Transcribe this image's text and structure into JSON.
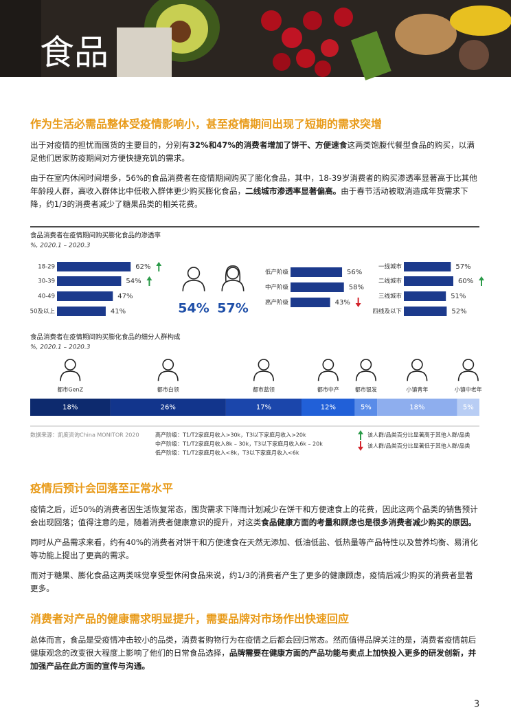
{
  "header": {
    "title": "食品"
  },
  "sections": [
    {
      "heading": "作为生活必需品整体受疫情影响小，甚至疫情期间出现了短期的需求突增",
      "paragraphs": [
        [
          {
            "text": "出于对疫情的担忧而囤货的主要目的，分别有"
          },
          {
            "text": "32%和47%的消费者增加了饼干、方便速食",
            "bold": true
          },
          {
            "text": "这两类饱腹代餐型食品的购买，以满足他们居家防疫期间对方便快捷充饥的需求。"
          }
        ],
        [
          {
            "text": "由于在室内休闲时间增多，56%的食品消费者在疫情期间购买了膨化食品，其中，18-39岁消费者的购买渗透率显著高于比其他年龄段人群，高收入群体比中低收入群体更少购买膨化食品，"
          },
          {
            "text": "二线城市渗透率显著偏高。",
            "bold": true
          },
          {
            "text": "由于春节活动被取消造成年货需求下降，约1/3的消费者减少了糖果品类的相关花费。"
          }
        ]
      ]
    },
    {
      "heading": "疫情后预计会回落至正常水平",
      "paragraphs": [
        [
          {
            "text": "疫情之后，近50%的消费者因生活恢复常态，囤货需求下降而计划减少在饼干和方便速食上的花费，因此这两个品类的销售预计会出现回落；值得注意的是，随着消费者健康意识的提升，对这类"
          },
          {
            "text": "食品健康方面的考量和顾虑也是很多消费者减少购买的原因。",
            "bold": true
          }
        ],
        [
          {
            "text": "同时从产品需求来看，约有40%的消费者对饼干和方便速食在天然无添加、低油低盐、低热量等产品特性以及营养均衡、易消化等功能上提出了更高的需求。"
          }
        ],
        [
          {
            "text": "而对于糖果、膨化食品这两类味觉享受型休闲食品来说，约1/3的消费者产生了更多的健康顾虑，疫情后减少购买的消费者显著更多。"
          }
        ]
      ]
    },
    {
      "heading": "消费者对产品的健康需求明显提升，需要品牌对市场作出快速回应",
      "paragraphs": [
        [
          {
            "text": "总体而言，食品是受疫情冲击较小的品类，消费者购物行为在疫情之后都会回归常态。然而值得品牌关注的是，消费者疫情前后健康观念的改变很大程度上影响了他们的日常食品选择，"
          },
          {
            "text": "品牌需要在健康方面的产品功能与卖点上加快投入更多的研发创新，并加强产品在此方面的宣传与沟通。",
            "bold": true
          }
        ]
      ]
    }
  ],
  "chart_data": [
    {
      "type": "bar",
      "title": "食品消费者在疫情期间购买膨化食品的渗透率",
      "subtitle": "%, 2020.1 – 2020.3",
      "categories": [
        "18-29",
        "30-39",
        "40-49",
        "50及以上"
      ],
      "values": [
        62,
        54,
        47,
        41
      ],
      "value_labels": [
        "62%",
        "54%",
        "47%",
        "41%"
      ],
      "trend": [
        "up",
        "up",
        null,
        null
      ],
      "color": "#1c3a8c"
    },
    {
      "type": "pictogram",
      "values": [
        54,
        57
      ],
      "value_labels": [
        "54%",
        "57%"
      ],
      "color": "#1f4fa8"
    },
    {
      "type": "bar",
      "categories": [
        "低产阶级",
        "中产阶级",
        "高产阶级"
      ],
      "values": [
        56,
        58,
        43
      ],
      "value_labels": [
        "56%",
        "58%",
        "43%"
      ],
      "trend": [
        null,
        null,
        "down"
      ],
      "color": "#1c3a8c"
    },
    {
      "type": "bar",
      "categories": [
        "一线城市",
        "二线城市",
        "三线城市",
        "四线及以下"
      ],
      "values": [
        57,
        60,
        51,
        52
      ],
      "value_labels": [
        "57%",
        "60%",
        "51%",
        "52%"
      ],
      "trend": [
        null,
        "up",
        null,
        null
      ],
      "color": "#1c3a8c"
    },
    {
      "type": "stacked-bar",
      "title": "食品消费者在疫情期间购买膨化食品的细分人群构成",
      "subtitle": "%, 2020.1 – 2020.3",
      "categories": [
        "都市GenZ",
        "都市白领",
        "都市蓝领",
        "都市中产",
        "都市银发",
        "小镇青年",
        "小镇中老年"
      ],
      "values": [
        18,
        26,
        17,
        12,
        5,
        18,
        5
      ],
      "value_labels": [
        "18%",
        "26%",
        "17%",
        "12%",
        "5%",
        "18%",
        "5%"
      ],
      "colors": [
        "#0d2a6e",
        "#12358c",
        "#1b46ab",
        "#2160d8",
        "#5a8ce8",
        "#8eaeee",
        "#b8cdf4"
      ]
    }
  ],
  "notes": {
    "source": "数据来源：凯度咨询China MONITOR 2020",
    "income_definitions": [
      "高产阶级：T1/T2家庭月收入>30k，T3以下家庭月收入>20k",
      "中产阶级：T1/T2家庭月收入8k – 30k，T3以下家庭月收入6k – 20k",
      "低产阶级：T1/T2家庭月收入<8k，T3以下家庭月收入<6k"
    ],
    "trend_legend": [
      {
        "trend": "up",
        "color": "#2a9a48",
        "label": "该人群/品类百分比显著高于其他人群/品类"
      },
      {
        "trend": "down",
        "color": "#d3242c",
        "label": "该人群/品类百分比显著低于其他人群/品类"
      }
    ]
  },
  "page_number": "3"
}
